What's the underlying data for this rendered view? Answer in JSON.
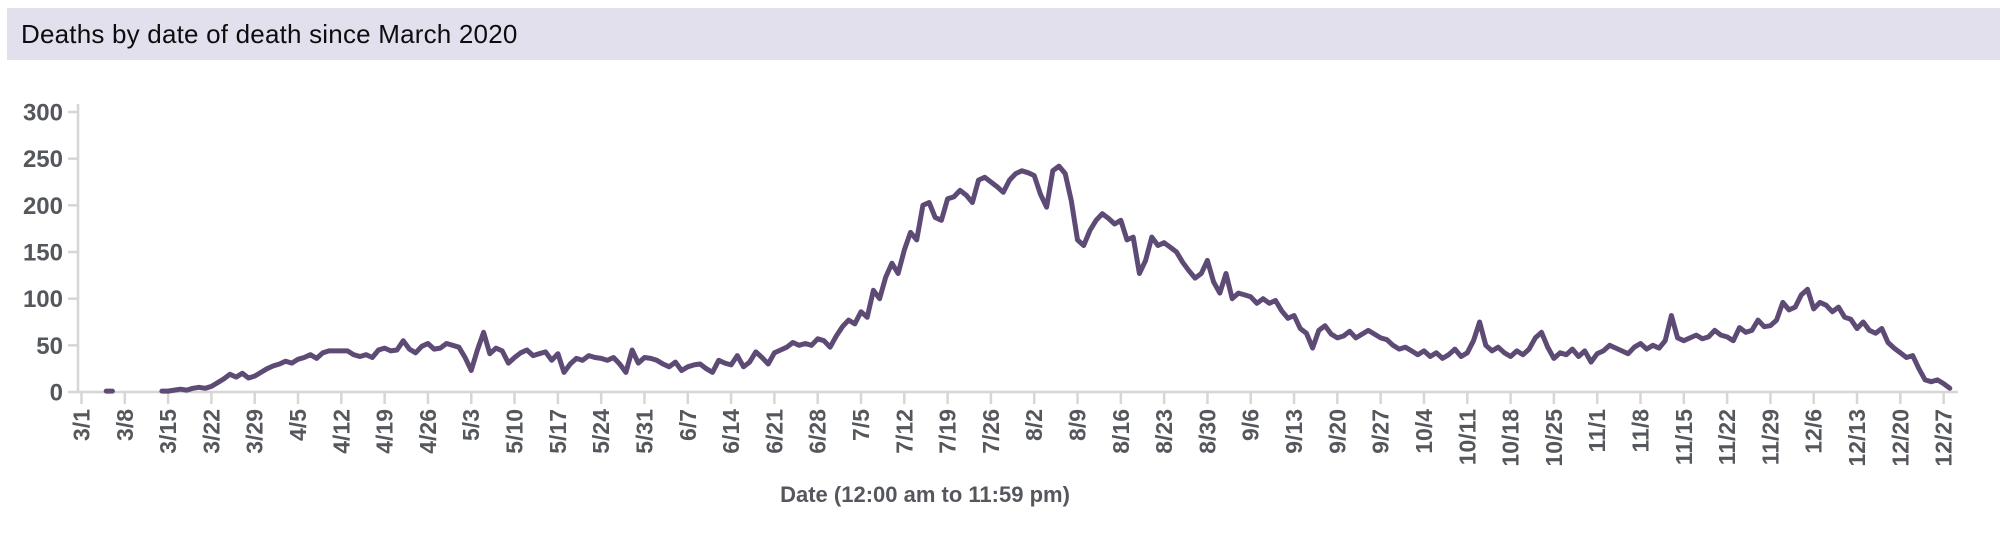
{
  "header": {
    "title": "Deaths by date of death since March 2020"
  },
  "chart_data": {
    "type": "line",
    "title": "Deaths by date of death since March 2020",
    "xlabel": "Date (12:00 am to 11:59 pm)",
    "ylabel": "",
    "ylim": [
      0,
      300
    ],
    "y_ticks": [
      0,
      50,
      100,
      150,
      200,
      250,
      300
    ],
    "x_tick_interval_days": 7,
    "x_tick_labels": [
      "3/1",
      "3/8",
      "3/15",
      "3/22",
      "3/29",
      "4/5",
      "4/12",
      "4/19",
      "4/26",
      "5/3",
      "5/10",
      "5/17",
      "5/24",
      "5/31",
      "6/7",
      "6/14",
      "6/21",
      "6/28",
      "7/5",
      "7/12",
      "7/19",
      "7/26",
      "8/2",
      "8/9",
      "8/16",
      "8/23",
      "8/30",
      "9/6",
      "9/13",
      "9/20",
      "9/27",
      "10/4",
      "10/11",
      "10/18",
      "10/25",
      "11/1",
      "11/8",
      "11/15",
      "11/22",
      "11/29",
      "12/6",
      "12/13",
      "12/20",
      "12/27"
    ],
    "start_date": "3/1/2020",
    "end_date": "12/28/2020",
    "grid": "off",
    "legend": "none",
    "series": [
      {
        "name": "Deaths by date of death",
        "daily_values": [
          null,
          null,
          null,
          null,
          1,
          1,
          null,
          null,
          null,
          null,
          null,
          null,
          null,
          1,
          1,
          2,
          3,
          2,
          4,
          5,
          4,
          6,
          10,
          14,
          19,
          16,
          20,
          15,
          17,
          21,
          25,
          28,
          30,
          33,
          31,
          35,
          37,
          40,
          36,
          42,
          44,
          44,
          44,
          44,
          40,
          38,
          40,
          37,
          45,
          47,
          44,
          45,
          55,
          46,
          42,
          49,
          52,
          46,
          47,
          52,
          50,
          48,
          37,
          23,
          45,
          64,
          41,
          47,
          44,
          31,
          37,
          42,
          45,
          39,
          41,
          43,
          34,
          41,
          21,
          30,
          36,
          34,
          39,
          37,
          36,
          34,
          37,
          30,
          21,
          45,
          31,
          37,
          36,
          34,
          30,
          27,
          32,
          23,
          27,
          29,
          30,
          25,
          21,
          34,
          31,
          29,
          39,
          27,
          32,
          43,
          37,
          30,
          42,
          45,
          48,
          53,
          50,
          52,
          50,
          57,
          55,
          48,
          60,
          70,
          77,
          73,
          86,
          80,
          109,
          100,
          123,
          138,
          127,
          152,
          171,
          163,
          200,
          203,
          187,
          184,
          207,
          209,
          216,
          211,
          203,
          227,
          230,
          225,
          220,
          214,
          227,
          234,
          237,
          235,
          232,
          212,
          198,
          237,
          242,
          234,
          205,
          163,
          157,
          173,
          184,
          191,
          186,
          180,
          184,
          163,
          166,
          127,
          141,
          166,
          157,
          160,
          155,
          150,
          139,
          130,
          122,
          127,
          141,
          118,
          106,
          127,
          100,
          106,
          104,
          102,
          95,
          100,
          95,
          98,
          87,
          79,
          82,
          68,
          63,
          47,
          66,
          71,
          62,
          58,
          60,
          65,
          58,
          62,
          66,
          62,
          58,
          56,
          50,
          46,
          48,
          44,
          40,
          44,
          38,
          42,
          36,
          40,
          46,
          38,
          42,
          55,
          75,
          50,
          44,
          48,
          42,
          38,
          44,
          40,
          46,
          58,
          64,
          48,
          36,
          42,
          40,
          46,
          38,
          44,
          32,
          41,
          44,
          50,
          47,
          44,
          41,
          48,
          52,
          46,
          50,
          47,
          55,
          82,
          58,
          55,
          58,
          61,
          57,
          59,
          66,
          61,
          59,
          55,
          69,
          64,
          66,
          77,
          70,
          71,
          77,
          96,
          88,
          91,
          104,
          110,
          89,
          96,
          93,
          86,
          91,
          80,
          78,
          68,
          75,
          66,
          63,
          68,
          53,
          47,
          42,
          37,
          39,
          25,
          13,
          11,
          13,
          9,
          4
        ]
      }
    ],
    "colors": {
      "line": "#5d4b76",
      "axis": "#d6d6d6",
      "tick_text": "#54575c",
      "title_bar_bg": "#e3e0ee",
      "title_text": "#0d0d0d"
    }
  }
}
